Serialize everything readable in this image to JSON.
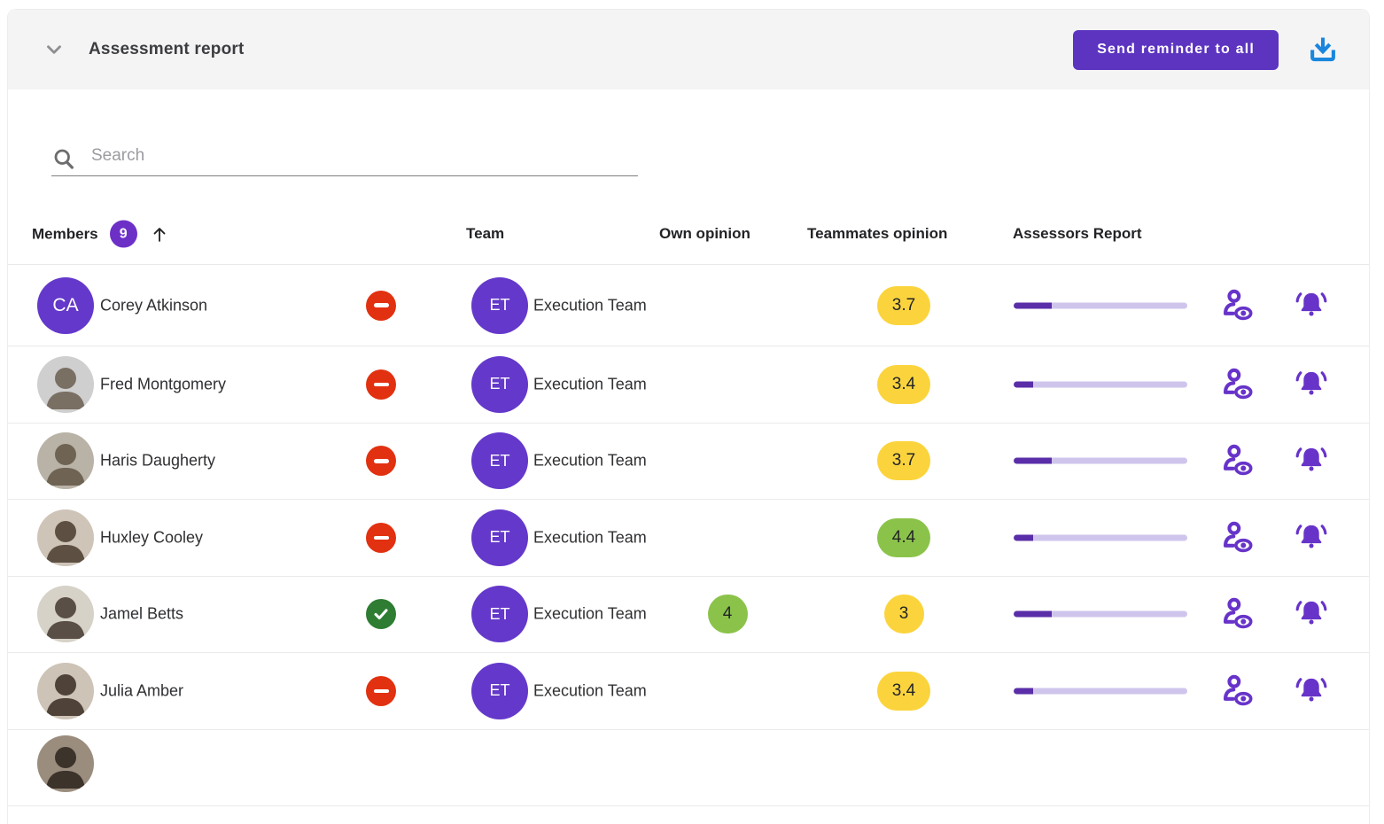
{
  "header": {
    "title": "Assessment report",
    "send_reminder_label": "Send reminder to all"
  },
  "search": {
    "placeholder": "Search"
  },
  "icons": {
    "collapse": "chevron-down-icon",
    "download": "download-icon",
    "search": "search-icon",
    "sort": "arrow-up-icon",
    "status_incomplete": "minus-circle-icon",
    "status_complete": "check-circle-icon",
    "view_assessment": "person-eye-icon",
    "remind": "bell-ringing-icon"
  },
  "colors": {
    "primary_purple": "#5c34c0",
    "avatar_purple": "#6438ca",
    "badge_purple": "#6d30c7",
    "progress_fill": "#5a2ea8",
    "progress_track": "#cfc5ec",
    "pill_yellow": "#fbd43d",
    "pill_green": "#8bc34a",
    "status_red": "#e23110",
    "status_green": "#2e7d32",
    "download_blue": "#1a86dd",
    "topbar_bg": "#f4f4f5"
  },
  "table": {
    "members_header": "Members",
    "members_count": "9",
    "columns": {
      "team": "Team",
      "own_opinion": "Own opinion",
      "teammates_opinion": "Teammates opinion",
      "assessors_report": "Assessors Report"
    },
    "rows": [
      {
        "name": "Corey Atkinson",
        "avatar": {
          "type": "initials",
          "initials": "CA"
        },
        "status": "incomplete",
        "team": {
          "badge": "ET",
          "label": "Execution Team"
        },
        "own_opinion": null,
        "teammates_opinion": {
          "value": "3.7",
          "color": "yellow"
        },
        "progress": 22
      },
      {
        "name": "Fred Montgomery",
        "avatar": {
          "type": "photo",
          "bg": "#cfcfcf",
          "fg": "#7a6f63"
        },
        "status": "incomplete",
        "team": {
          "badge": "ET",
          "label": "Execution Team"
        },
        "own_opinion": null,
        "teammates_opinion": {
          "value": "3.4",
          "color": "yellow"
        },
        "progress": 11
      },
      {
        "name": "Haris Daugherty",
        "avatar": {
          "type": "photo",
          "bg": "#b9b2a6",
          "fg": "#6f6354"
        },
        "status": "incomplete",
        "team": {
          "badge": "ET",
          "label": "Execution Team"
        },
        "own_opinion": null,
        "teammates_opinion": {
          "value": "3.7",
          "color": "yellow"
        },
        "progress": 22
      },
      {
        "name": "Huxley Cooley",
        "avatar": {
          "type": "photo",
          "bg": "#cfc4b8",
          "fg": "#5d4f42"
        },
        "status": "incomplete",
        "team": {
          "badge": "ET",
          "label": "Execution Team"
        },
        "own_opinion": null,
        "teammates_opinion": {
          "value": "4.4",
          "color": "green"
        },
        "progress": 11
      },
      {
        "name": "Jamel Betts",
        "avatar": {
          "type": "photo",
          "bg": "#d6d2c8",
          "fg": "#5a4f46"
        },
        "status": "complete",
        "team": {
          "badge": "ET",
          "label": "Execution Team"
        },
        "own_opinion": {
          "value": "4",
          "color": "green"
        },
        "teammates_opinion": {
          "value": "3",
          "color": "yellow"
        },
        "progress": 22
      },
      {
        "name": "Julia Amber",
        "avatar": {
          "type": "photo",
          "bg": "#cdc3b6",
          "fg": "#4f4339"
        },
        "status": "incomplete",
        "team": {
          "badge": "ET",
          "label": "Execution Team"
        },
        "own_opinion": null,
        "teammates_opinion": {
          "value": "3.4",
          "color": "yellow"
        },
        "progress": 11
      },
      {
        "name": "",
        "avatar": {
          "type": "photo",
          "bg": "#9a8d7e",
          "fg": "#3c332b"
        },
        "status": null,
        "team": {
          "badge": "",
          "label": ""
        },
        "own_opinion": null,
        "teammates_opinion": null,
        "progress": null,
        "partial": true
      }
    ]
  }
}
